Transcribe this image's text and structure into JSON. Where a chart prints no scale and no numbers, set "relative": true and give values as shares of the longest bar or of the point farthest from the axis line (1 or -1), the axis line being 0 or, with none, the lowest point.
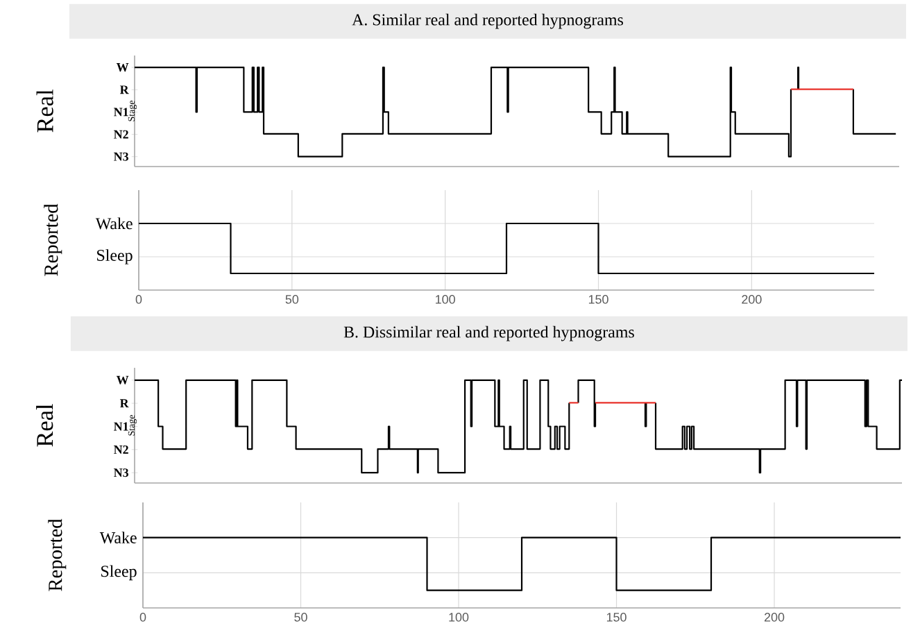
{
  "chart_data": [
    {
      "type": "step",
      "relative": true,
      "title": "A.   Similar real and reported hypnograms",
      "ylabel": "Stage",
      "annotations": [
        "Real",
        "W",
        "R",
        "N1",
        "N2",
        "N3"
      ],
      "xlim": [
        -1.7,
        248.3
      ],
      "xticks": [
        0,
        50,
        100,
        150,
        200
      ],
      "tick_labels": "y",
      "series": [
        {
          "color": "#000000",
          "x": [
            -1.7,
            18.4,
            18.7,
            34.0,
            36.8,
            37.3,
            38.5,
            39.0,
            40.1,
            40.5,
            51.8,
            66.2,
            79.5,
            79.9,
            81.3,
            114.9,
            120.2,
            120.5,
            146.7,
            150.9,
            154.2,
            155.1,
            155.4,
            157.7,
            159.2,
            159.5,
            172.8,
            193.1,
            193.4,
            194.7,
            212.2,
            212.9,
            213.9,
            215.2,
            215.2,
            215.4,
            216.0,
            233.3,
            233.3,
            247.2
          ],
          "values": [
            1,
            0.55,
            1,
            0.55,
            1,
            0.55,
            1,
            0.55,
            1,
            0.33,
            0.1,
            0.33,
            1,
            0.55,
            0.33,
            1,
            0.55,
            1,
            0.55,
            0.33,
            0.55,
            1,
            0.55,
            0.33,
            0.55,
            0.33,
            0.1,
            1,
            0.55,
            0.33,
            0.1,
            0.78,
            null,
            0.78,
            1,
            0.78,
            null,
            0.78,
            0.33,
            0.33
          ]
        },
        {
          "color": "#e8312a",
          "x": [
            212.9,
            233.3
          ],
          "values": [
            0.78,
            0.78
          ]
        }
      ]
    },
    {
      "type": "step",
      "relative": true,
      "ylabel": "Reported",
      "annotations": [
        "Wake",
        "Sleep"
      ],
      "xlim": [
        0,
        240
      ],
      "xticks": [
        0,
        50,
        100,
        150,
        200
      ],
      "grid": true,
      "series": [
        {
          "color": "#000000",
          "x": [
            0,
            30,
            120,
            150,
            240
          ],
          "values": [
            1,
            0.25,
            1,
            0.25,
            0.25
          ]
        }
      ]
    },
    {
      "type": "step",
      "relative": true,
      "title": "B.   Dissimilar real and reported hypnograms",
      "ylabel": "Stage",
      "annotations": [
        "Real",
        "W",
        "R",
        "N1",
        "N2",
        "N3"
      ],
      "xlim": [
        -2.6,
        240.4
      ],
      "xticks": [
        0,
        50,
        100,
        150,
        200
      ],
      "tick_labels": "y",
      "series": [
        {
          "color": "#000000",
          "x": [
            -2.6,
            4.9,
            6.3,
            13.7,
            29.4,
            29.7,
            30.0,
            33.2,
            34.6,
            45.6,
            48.5,
            69.3,
            74.4,
            77.8,
            78.1,
            87.0,
            87.2,
            93.5,
            102.0,
            103.9,
            104.2,
            111.5,
            112.6,
            112.9,
            114.4,
            116.2,
            116.5,
            120.6,
            121.7,
            125.8,
            128.4,
            129.1,
            130.5,
            131.2,
            132.0,
            133.7,
            135.0,
            135.9,
            137.9,
            137.9,
            143.0,
            143.3,
            144.0,
            159.1,
            159.1,
            159.4,
            160.1,
            162.4,
            162.4,
            170.9,
            171.6,
            172.3,
            173.2,
            173.8,
            174.5,
            195.3,
            195.6,
            203.4,
            207.0,
            207.3,
            210.0,
            210.3,
            228.7,
            229.2,
            229.7,
            232.4,
            239.7,
            240.4
          ],
          "values": [
            1,
            0.55,
            0.33,
            1,
            0.55,
            1,
            0.55,
            0.33,
            1,
            0.55,
            0.33,
            0.1,
            0.33,
            0.55,
            0.33,
            0.1,
            0.33,
            0.1,
            1,
            0.55,
            1,
            0.55,
            1,
            0.55,
            0.33,
            0.55,
            0.33,
            1,
            0.33,
            1,
            0.55,
            0.33,
            0.55,
            0.33,
            0.55,
            0.33,
            0.78,
            null,
            0.78,
            1,
            0.55,
            0.78,
            null,
            0.78,
            0.55,
            0.78,
            null,
            0.78,
            0.33,
            0.55,
            0.33,
            0.55,
            0.33,
            0.55,
            0.33,
            0.1,
            0.33,
            1,
            0.55,
            1,
            0.33,
            1,
            0.55,
            1,
            0.55,
            0.33,
            1,
            1
          ]
        },
        {
          "color": "#e8312a",
          "x": [
            135.0,
            137.9
          ],
          "values": [
            0.78,
            0.78
          ]
        },
        {
          "color": "#e8312a",
          "x": [
            143.3,
            162.4
          ],
          "values": [
            0.78,
            0.78
          ]
        }
      ]
    },
    {
      "type": "step",
      "relative": true,
      "ylabel": "Reported",
      "annotations": [
        "Wake",
        "Sleep"
      ],
      "xlim": [
        0,
        240
      ],
      "xticks": [
        0,
        50,
        100,
        150,
        200
      ],
      "grid": true,
      "series": [
        {
          "color": "#000000",
          "x": [
            0,
            90,
            120,
            150,
            180,
            240
          ],
          "values": [
            1,
            0.25,
            1,
            0.25,
            1,
            1
          ]
        }
      ]
    }
  ]
}
